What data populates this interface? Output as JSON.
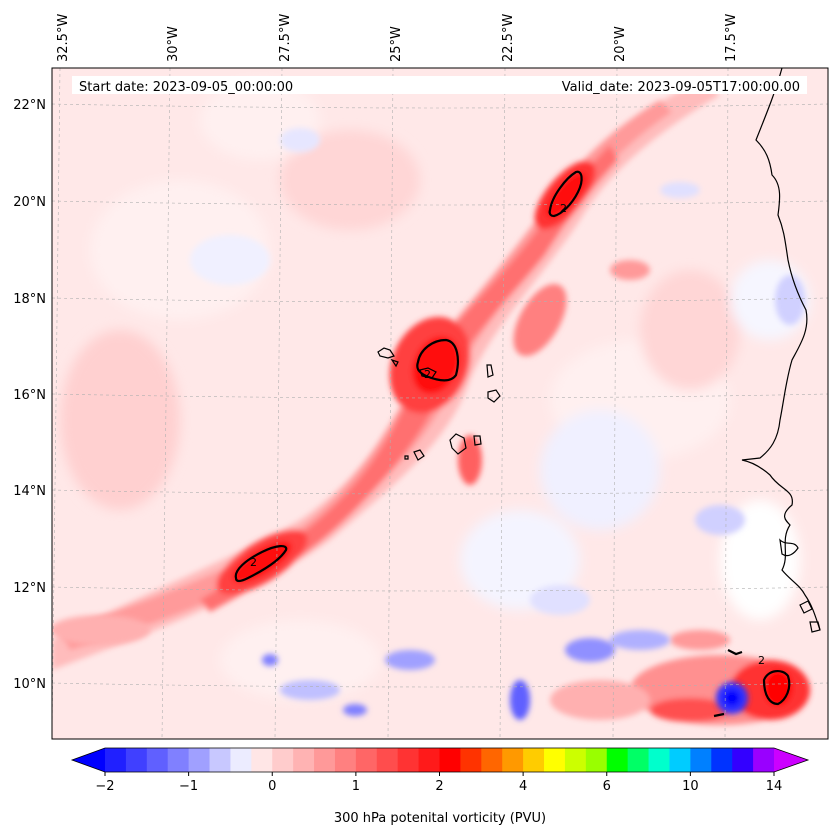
{
  "header": {
    "start_date": "Start date: 2023-09-05_00:00:00",
    "valid_date": "Valid_date: 2023-09-05T17:00:00.00"
  },
  "longitude_labels": [
    "32.5°W",
    "30°W",
    "27.5°W",
    "25°W",
    "22.5°W",
    "20°W",
    "17.5°W"
  ],
  "latitude_labels": [
    "22°N",
    "20°N",
    "18°N",
    "16°N",
    "14°N",
    "12°N",
    "10°N"
  ],
  "contour_labels": [
    "2",
    "2",
    "2",
    "2"
  ],
  "colorbar": {
    "title": "300 hPa potenital vorticity (PVU)",
    "tick_labels": [
      "−2",
      "−1",
      "0",
      "1",
      "2",
      "4",
      "6",
      "10",
      "14"
    ],
    "colors": [
      "#0000ff",
      "#2020ff",
      "#4040ff",
      "#6060ff",
      "#8080ff",
      "#a0a0ff",
      "#c8c8ff",
      "#ececff",
      "#ffe6e6",
      "#ffcccc",
      "#ffb3b3",
      "#ff9999",
      "#ff8080",
      "#ff6666",
      "#ff4d4d",
      "#ff3333",
      "#ff1a1a",
      "#ff0000",
      "#ff3300",
      "#ff6600",
      "#ff9900",
      "#ffcc00",
      "#ffff00",
      "#ccff00",
      "#99ff00",
      "#00ff00",
      "#00ff66",
      "#00ffcc",
      "#00ccff",
      "#0080ff",
      "#0033ff",
      "#3300ff",
      "#9900ff",
      "#cc00ff"
    ]
  },
  "chart_data": {
    "type": "heatmap",
    "title": "",
    "variable": "300 hPa potenital vorticity (PVU)",
    "start_date": "2023-09-05_00:00:00",
    "valid_date": "2023-09-05T17:00:00.00",
    "lon_range_deg": [
      -33,
      -15
    ],
    "lat_range_deg": [
      8.9,
      22.7
    ],
    "lon_ticks": [
      -32.5,
      -30,
      -27.5,
      -25,
      -22.5,
      -20,
      -17.5
    ],
    "lat_ticks": [
      22,
      20,
      18,
      16,
      14,
      12,
      10
    ],
    "colorbar_ticks": [
      -2,
      -1,
      0,
      1,
      2,
      4,
      6,
      10,
      14
    ],
    "colorbar_extend": "both",
    "contour_level_labeled": 2,
    "pv_maxima": [
      {
        "lon": -27.3,
        "lat": 12.4,
        "pv": 2.2
      },
      {
        "lon": -23.9,
        "lat": 16.4,
        "pv": 2.3
      },
      {
        "lon": -21.0,
        "lat": 20.0,
        "pv": 2.1
      },
      {
        "lon": -15.7,
        "lat": 9.7,
        "pv": 2.1
      }
    ]
  }
}
